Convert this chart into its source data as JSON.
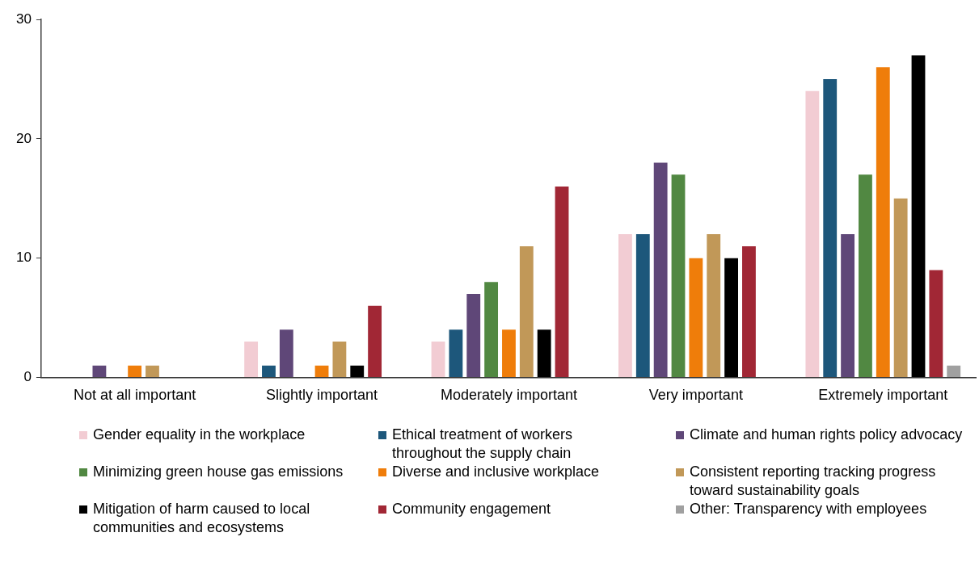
{
  "chart_data": {
    "type": "bar",
    "categories": [
      "Not at all important",
      "Slightly important",
      "Moderately important",
      "Very important",
      "Extremely important"
    ],
    "series": [
      {
        "name": "Gender equality in the workplace",
        "color": "#f2ccd3",
        "values": [
          0,
          3,
          3,
          12,
          24
        ]
      },
      {
        "name": "Ethical treatment of workers throughout the supply chain",
        "color": "#1d577b",
        "values": [
          0,
          1,
          4,
          12,
          25
        ]
      },
      {
        "name": "Climate and human rights policy advocacy",
        "color": "#5f4778",
        "values": [
          1,
          4,
          7,
          18,
          12
        ]
      },
      {
        "name": "Minimizing green house gas emissions",
        "color": "#518842",
        "values": [
          0,
          0,
          8,
          17,
          17
        ]
      },
      {
        "name": "Diverse and inclusive workplace",
        "color": "#ef7d0a",
        "values": [
          1,
          1,
          4,
          10,
          26
        ]
      },
      {
        "name": "Consistent reporting tracking progress toward sustainability goals",
        "color": "#c19858",
        "values": [
          1,
          3,
          11,
          12,
          15
        ]
      },
      {
        "name": "Mitigation of harm caused to local communities and ecosystems",
        "color": "#000000",
        "values": [
          0,
          1,
          4,
          10,
          27
        ]
      },
      {
        "name": "Community engagement",
        "color": "#a12735",
        "values": [
          0,
          6,
          16,
          11,
          9
        ]
      },
      {
        "name": "Other: Transparency with employees",
        "color": "#a0a0a0",
        "values": [
          0,
          0,
          0,
          0,
          1
        ]
      }
    ],
    "ylim": [
      0,
      30
    ],
    "yticks": [
      0,
      10,
      20,
      30
    ],
    "grid": false,
    "legend": "bottom"
  }
}
